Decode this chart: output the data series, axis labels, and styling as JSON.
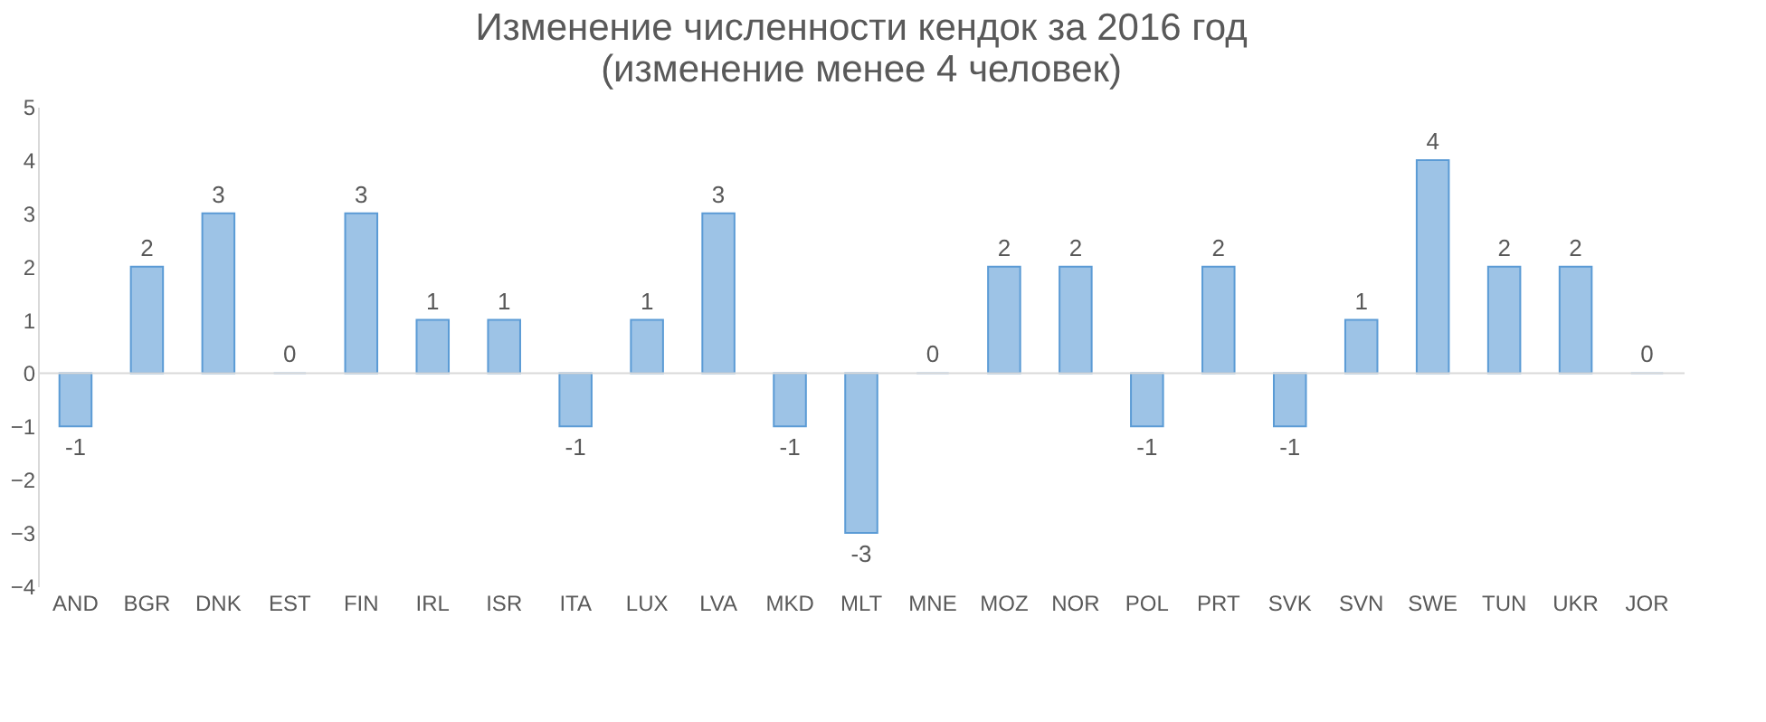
{
  "chart_data": {
    "type": "bar",
    "title": [
      "Изменение численности кендок за 2016 год",
      "(изменение менее 4 человек)"
    ],
    "categories": [
      "AND",
      "BGR",
      "DNK",
      "EST",
      "FIN",
      "IRL",
      "ISR",
      "ITA",
      "LUX",
      "LVA",
      "MKD",
      "MLT",
      "MNE",
      "MOZ",
      "NOR",
      "POL",
      "PRT",
      "SVK",
      "SVN",
      "SWE",
      "TUN",
      "UKR",
      "JOR"
    ],
    "values": [
      -1,
      2,
      3,
      0,
      3,
      1,
      1,
      -1,
      1,
      3,
      -1,
      -3,
      0,
      2,
      2,
      -1,
      2,
      -1,
      1,
      4,
      2,
      2,
      0
    ],
    "color": "#9dc3e6",
    "ylim": [
      -4,
      5
    ],
    "yticks": [
      -4,
      -3,
      -2,
      -1,
      0,
      1,
      2,
      3,
      4,
      5
    ],
    "data_labels": true
  }
}
